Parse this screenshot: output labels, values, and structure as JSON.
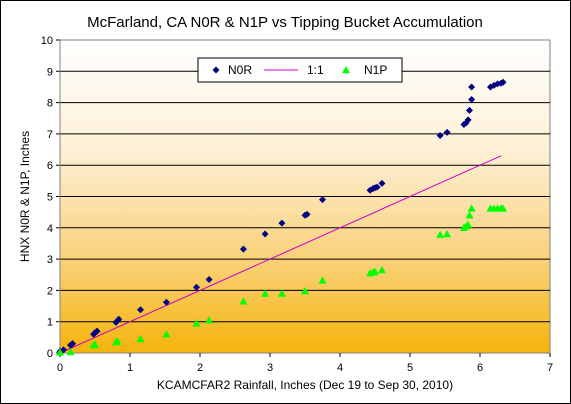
{
  "chart_data": {
    "type": "scatter",
    "title": "McFarland, CA N0R & N1P vs Tipping Bucket Accumulation",
    "xlabel": "KCAMCFAR2 Rainfall, Inches (Dec 19 to Sep 30, 2010)",
    "ylabel": "HNX N0R & N1P, Inches",
    "xlim": [
      0,
      7
    ],
    "ylim": [
      0,
      10
    ],
    "xticks": [
      "0",
      "1",
      "2",
      "3",
      "4",
      "5",
      "6",
      "7"
    ],
    "yticks": [
      "0",
      "1",
      "2",
      "3",
      "4",
      "5",
      "6",
      "7",
      "8",
      "9",
      "10"
    ],
    "grid": "horizontal",
    "background": "gradient white to orange",
    "legend_position": "top-center",
    "series": [
      {
        "name": "N0R",
        "marker": "diamond",
        "color": "#000080",
        "points": [
          [
            0.0,
            0.05
          ],
          [
            0.05,
            0.1
          ],
          [
            0.15,
            0.25
          ],
          [
            0.18,
            0.3
          ],
          [
            0.48,
            0.6
          ],
          [
            0.5,
            0.65
          ],
          [
            0.53,
            0.7
          ],
          [
            0.8,
            0.98
          ],
          [
            0.82,
            1.03
          ],
          [
            0.84,
            1.08
          ],
          [
            1.15,
            1.38
          ],
          [
            1.52,
            1.62
          ],
          [
            1.95,
            2.1
          ],
          [
            2.13,
            2.35
          ],
          [
            2.62,
            3.32
          ],
          [
            2.93,
            3.8
          ],
          [
            3.17,
            4.15
          ],
          [
            3.5,
            4.4
          ],
          [
            3.53,
            4.43
          ],
          [
            3.75,
            4.9
          ],
          [
            4.43,
            5.2
          ],
          [
            4.47,
            5.25
          ],
          [
            4.5,
            5.28
          ],
          [
            4.53,
            5.3
          ],
          [
            4.6,
            5.42
          ],
          [
            5.43,
            6.95
          ],
          [
            5.53,
            7.05
          ],
          [
            5.77,
            7.3
          ],
          [
            5.8,
            7.35
          ],
          [
            5.83,
            7.45
          ],
          [
            5.85,
            7.75
          ],
          [
            5.88,
            8.1
          ],
          [
            5.88,
            8.5
          ],
          [
            6.15,
            8.5
          ],
          [
            6.2,
            8.55
          ],
          [
            6.25,
            8.6
          ],
          [
            6.3,
            8.62
          ],
          [
            6.33,
            8.65
          ]
        ]
      },
      {
        "name": "1:1",
        "type": "line",
        "color": "#cc00cc",
        "points": [
          [
            0,
            0
          ],
          [
            6.3,
            6.3
          ]
        ]
      },
      {
        "name": "N1P",
        "marker": "triangle",
        "color": "#00ff00",
        "points": [
          [
            0.0,
            0.02
          ],
          [
            0.15,
            0.03
          ],
          [
            0.48,
            0.25
          ],
          [
            0.5,
            0.27
          ],
          [
            0.8,
            0.35
          ],
          [
            0.82,
            0.37
          ],
          [
            1.15,
            0.45
          ],
          [
            1.52,
            0.6
          ],
          [
            1.95,
            0.95
          ],
          [
            2.13,
            1.05
          ],
          [
            2.62,
            1.65
          ],
          [
            2.93,
            1.9
          ],
          [
            3.17,
            1.9
          ],
          [
            3.5,
            1.98
          ],
          [
            3.75,
            2.32
          ],
          [
            4.43,
            2.55
          ],
          [
            4.47,
            2.58
          ],
          [
            4.5,
            2.6
          ],
          [
            4.6,
            2.65
          ],
          [
            5.43,
            3.78
          ],
          [
            5.53,
            3.8
          ],
          [
            5.77,
            4.0
          ],
          [
            5.8,
            4.05
          ],
          [
            5.83,
            4.1
          ],
          [
            5.85,
            4.4
          ],
          [
            5.88,
            4.62
          ],
          [
            6.15,
            4.62
          ],
          [
            6.2,
            4.62
          ],
          [
            6.25,
            4.62
          ],
          [
            6.3,
            4.62
          ],
          [
            6.33,
            4.62
          ]
        ]
      }
    ]
  }
}
